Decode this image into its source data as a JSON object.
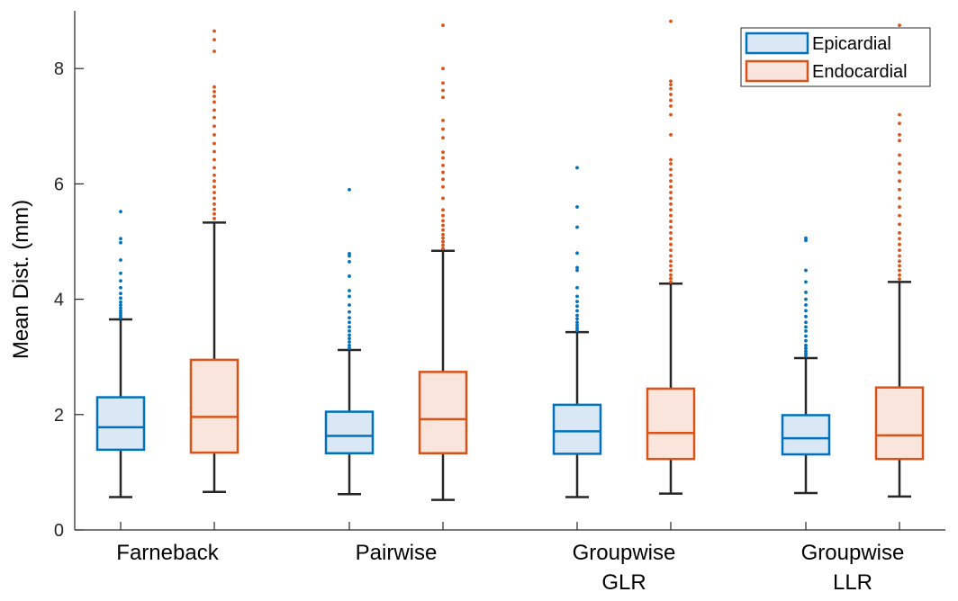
{
  "chart_data": {
    "type": "boxplot",
    "title": "",
    "xlabel": "",
    "ylabel": "Mean Dist. (mm)",
    "ylim": [
      0,
      9
    ],
    "yticks": [
      0,
      2,
      4,
      6,
      8
    ],
    "categories": [
      {
        "lines": [
          "Farneback"
        ]
      },
      {
        "lines": [
          "Pairwise"
        ]
      },
      {
        "lines": [
          "Groupwise",
          "GLR"
        ]
      },
      {
        "lines": [
          "Groupwise",
          "LLR"
        ]
      }
    ],
    "legend": {
      "position": "top-right"
    },
    "series": [
      {
        "name": "Epicardial",
        "edge_color": "#0072BD",
        "fill_color": "#DAE8F5",
        "boxes": [
          {
            "whisker_low": 0.57,
            "q1": 1.39,
            "median": 1.78,
            "q3": 2.3,
            "whisker_high": 3.65,
            "outliers": [
              3.68,
              3.72,
              3.76,
              3.8,
              3.85,
              3.9,
              3.95,
              4.02,
              4.1,
              4.2,
              4.32,
              4.45,
              4.68,
              4.98,
              5.05,
              5.52
            ]
          },
          {
            "whisker_low": 0.62,
            "q1": 1.33,
            "median": 1.63,
            "q3": 2.05,
            "whisker_high": 3.12,
            "outliers": [
              3.15,
              3.2,
              3.26,
              3.32,
              3.38,
              3.45,
              3.52,
              3.6,
              3.68,
              3.78,
              3.9,
              4.05,
              4.15,
              4.4,
              4.65,
              4.75,
              4.79,
              5.9
            ]
          },
          {
            "whisker_low": 0.57,
            "q1": 1.32,
            "median": 1.71,
            "q3": 2.17,
            "whisker_high": 3.43,
            "outliers": [
              3.46,
              3.5,
              3.55,
              3.6,
              3.66,
              3.72,
              3.8,
              3.88,
              3.96,
              4.05,
              4.2,
              4.5,
              4.55,
              4.8,
              5.25,
              5.6,
              6.28
            ]
          },
          {
            "whisker_low": 0.64,
            "q1": 1.31,
            "median": 1.59,
            "q3": 1.99,
            "whisker_high": 2.98,
            "outliers": [
              3.02,
              3.06,
              3.1,
              3.15,
              3.2,
              3.28,
              3.36,
              3.45,
              3.52,
              3.6,
              3.7,
              3.8,
              3.9,
              4.0,
              4.12,
              4.3,
              4.5,
              5.02,
              5.06
            ]
          }
        ]
      },
      {
        "name": "Endocardial",
        "edge_color": "#D95319",
        "fill_color": "#FAE5DD",
        "boxes": [
          {
            "whisker_low": 0.66,
            "q1": 1.34,
            "median": 1.96,
            "q3": 2.95,
            "whisker_high": 5.33,
            "outliers": [
              5.4,
              5.48,
              5.56,
              5.65,
              5.75,
              5.85,
              5.95,
              6.05,
              6.15,
              6.28,
              6.42,
              6.56,
              6.7,
              6.85,
              7.0,
              7.15,
              7.28,
              7.42,
              7.52,
              7.6,
              7.68,
              8.3,
              8.5,
              8.65
            ]
          },
          {
            "whisker_low": 0.52,
            "q1": 1.33,
            "median": 1.92,
            "q3": 2.74,
            "whisker_high": 4.84,
            "outliers": [
              4.88,
              4.94,
              5.0,
              5.06,
              5.12,
              5.2,
              5.28,
              5.36,
              5.45,
              5.55,
              5.75,
              5.95,
              6.08,
              6.2,
              6.32,
              6.45,
              6.55,
              6.8,
              6.95,
              7.1,
              7.5,
              7.62,
              7.75,
              8.0,
              8.75
            ]
          },
          {
            "whisker_low": 0.63,
            "q1": 1.23,
            "median": 1.68,
            "q3": 2.45,
            "whisker_high": 4.27,
            "outliers": [
              4.3,
              4.36,
              4.42,
              4.5,
              4.58,
              4.66,
              4.75,
              4.85,
              4.95,
              5.05,
              5.15,
              5.25,
              5.35,
              5.45,
              5.55,
              5.65,
              5.75,
              5.85,
              5.95,
              6.05,
              6.15,
              6.25,
              6.35,
              6.42,
              6.85,
              7.2,
              7.35,
              7.45,
              7.55,
              7.65,
              7.72,
              7.78,
              8.82
            ]
          },
          {
            "whisker_low": 0.58,
            "q1": 1.23,
            "median": 1.64,
            "q3": 2.47,
            "whisker_high": 4.3,
            "outliers": [
              4.35,
              4.42,
              4.5,
              4.58,
              4.66,
              4.75,
              4.85,
              4.95,
              5.05,
              5.15,
              5.3,
              5.45,
              5.6,
              5.75,
              5.9,
              6.05,
              6.2,
              6.35,
              6.5,
              6.75,
              6.85,
              7.05,
              7.2,
              8.75
            ]
          }
        ]
      }
    ]
  }
}
